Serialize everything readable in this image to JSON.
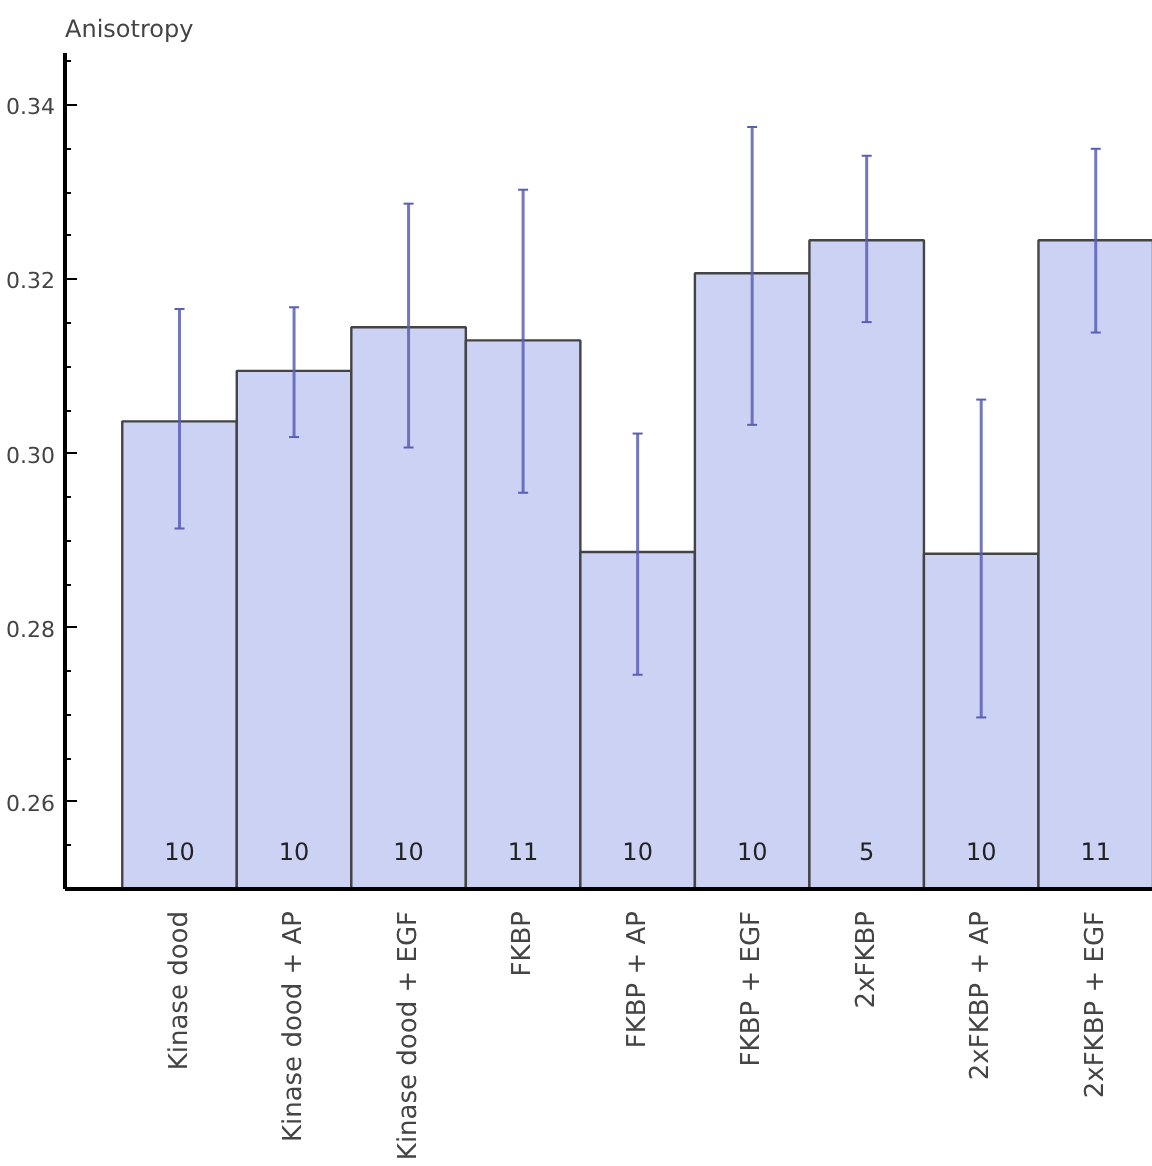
{
  "chart_data": {
    "type": "bar",
    "ylabel": "Anisotropy",
    "categories": [
      "Kinase dood",
      "Kinase dood + AP",
      "Kinase dood + EGF",
      "FKBP",
      "FKBP + AP",
      "FKBP + EGF",
      "2xFKBP",
      "2xFKBP + AP",
      "2xFKBP + EGF"
    ],
    "values": [
      0.3037,
      0.3095,
      0.3145,
      0.313,
      0.2887,
      0.3207,
      0.3245,
      0.2885,
      0.3245
    ],
    "errors": [
      [
        0.2914,
        0.3166
      ],
      [
        0.3019,
        0.3168
      ],
      [
        0.3007,
        0.3287
      ],
      [
        0.2955,
        0.3303
      ],
      [
        0.2746,
        0.3023
      ],
      [
        0.3033,
        0.3375
      ],
      [
        0.3151,
        0.3342
      ],
      [
        0.2697,
        0.3062
      ],
      [
        0.3139,
        0.335
      ]
    ],
    "color": "#ccd2f3",
    "ylim": [
      0.25,
      0.346
    ],
    "yticks": [
      {
        "value": 0.26,
        "label": "0.26"
      },
      {
        "value": 0.28,
        "label": "0.28"
      },
      {
        "value": 0.3,
        "label": "0.30"
      },
      {
        "value": 0.32,
        "label": "0.32"
      },
      {
        "value": 0.34,
        "label": "0.34"
      }
    ],
    "annotations": [
      "10",
      "10",
      "10",
      "11",
      "10",
      "10",
      "5",
      "10",
      "11"
    ],
    "grid": false
  }
}
